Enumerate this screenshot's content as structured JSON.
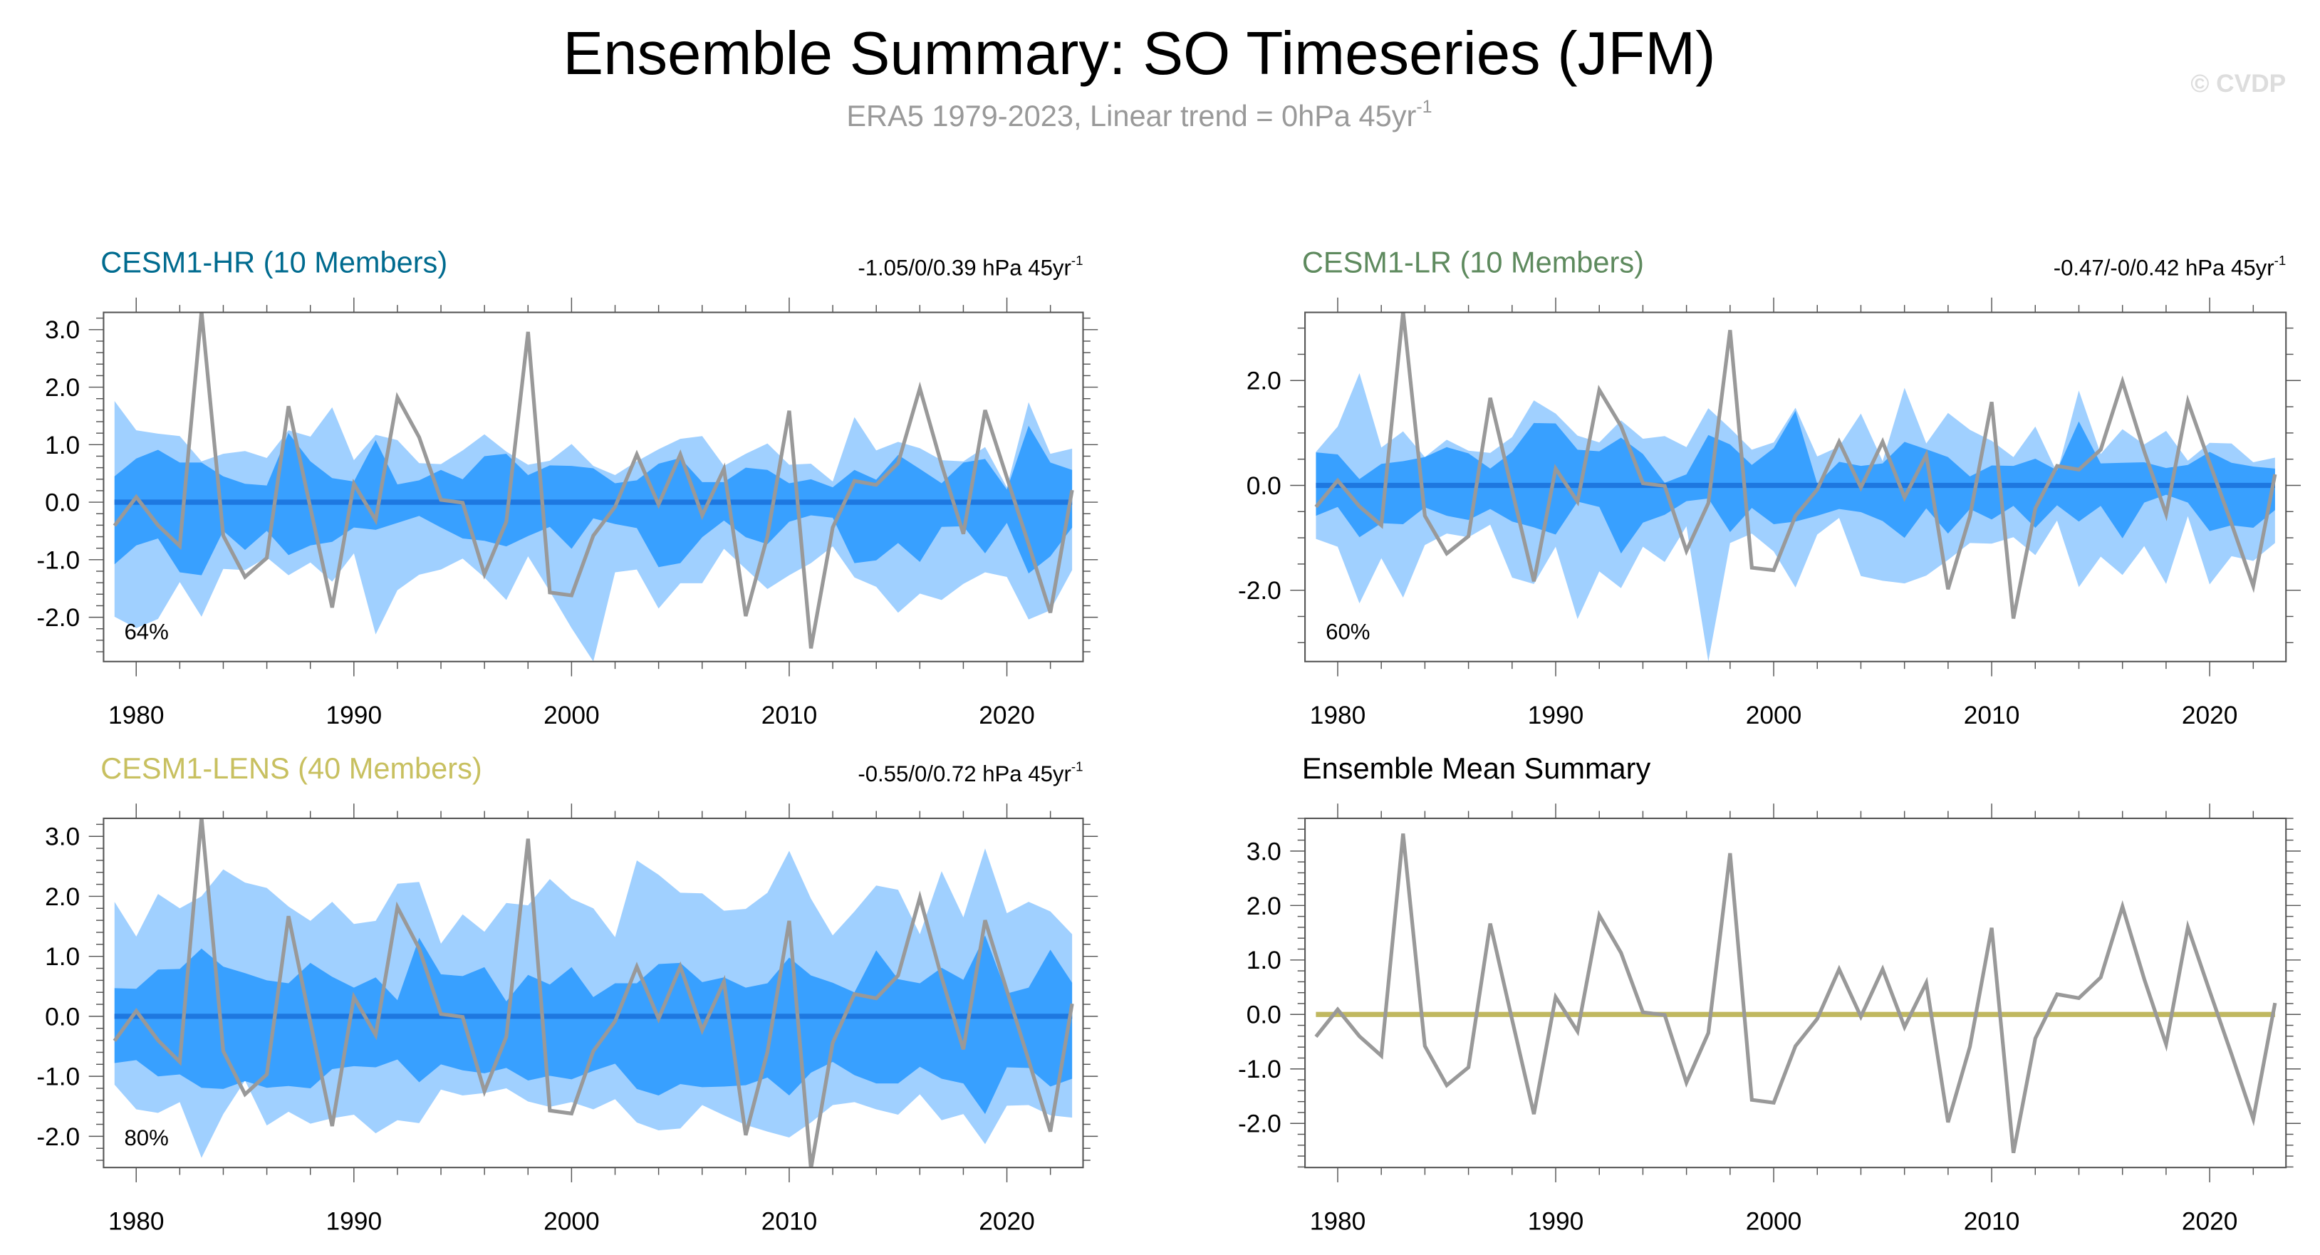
{
  "header": {
    "title": "Ensemble Summary: SO Timeseries (JFM)",
    "subtitle": "ERA5 1979-2023, Linear trend = 0hPa 45yr",
    "subtitle_sup": "-1",
    "watermark": "© CVDP"
  },
  "colors": {
    "band_outer": "#a0d0ff",
    "band_inner": "#38a0ff",
    "ensemble_mean_line": "#1e78e0",
    "observations": "#999999",
    "summary_mean_line": "#c0b860",
    "title_hr": "#006b8f",
    "title_lr": "#5e8a5e",
    "title_lens": "#c8c060",
    "title_summary": "#000000"
  },
  "chart_data": [
    {
      "type": "area",
      "title": "CESM1-HR (10 Members)",
      "title_color_key": "title_hr",
      "trend_label": "-1.05/0/0.39 hPa 45yr",
      "trend_sup": "-1",
      "percent_label": "64%",
      "x": [
        1979,
        1980,
        1981,
        1982,
        1983,
        1984,
        1985,
        1986,
        1987,
        1988,
        1989,
        1990,
        1991,
        1992,
        1993,
        1994,
        1995,
        1996,
        1997,
        1998,
        1999,
        2000,
        2001,
        2002,
        2003,
        2004,
        2005,
        2006,
        2007,
        2008,
        2009,
        2010,
        2011,
        2012,
        2013,
        2014,
        2015,
        2016,
        2017,
        2018,
        2019,
        2020,
        2021,
        2022,
        2023
      ],
      "xlim": [
        1978.5,
        2023.5
      ],
      "xticks": [
        1980,
        1990,
        2000,
        2010,
        2020
      ],
      "xtick_labels": [
        "1980",
        "1990",
        "2000",
        "2010",
        "2020"
      ],
      "ylim": [
        -2.77,
        3.3
      ],
      "yticks": [
        -2,
        -1,
        0,
        1,
        2,
        3
      ],
      "ytick_labels": [
        "-2.0",
        "-1.0",
        "0.0",
        "1.0",
        "2.0",
        "3.0"
      ],
      "yminor": 0.2,
      "outer_upper": [
        1.76,
        1.25,
        1.19,
        1.15,
        0.71,
        0.84,
        0.89,
        0.77,
        1.25,
        1.14,
        1.65,
        0.73,
        1.17,
        1.08,
        0.68,
        0.66,
        0.9,
        1.18,
        0.88,
        0.65,
        0.72,
        1.01,
        0.63,
        0.47,
        0.71,
        0.92,
        1.1,
        1.15,
        0.63,
        0.84,
        1.02,
        0.65,
        0.67,
        0.36,
        1.48,
        0.9,
        1.05,
        0.94,
        0.73,
        0.71,
        0.96,
        0.26,
        1.74,
        0.84,
        0.93
      ],
      "inner_upper": [
        0.45,
        0.76,
        0.91,
        0.69,
        0.69,
        0.45,
        0.32,
        0.29,
        1.2,
        0.71,
        0.42,
        0.36,
        1.08,
        0.31,
        0.38,
        0.56,
        0.4,
        0.8,
        0.84,
        0.47,
        0.64,
        0.63,
        0.59,
        0.33,
        0.38,
        0.67,
        0.77,
        0.35,
        0.35,
        0.6,
        0.56,
        0.33,
        0.4,
        0.26,
        0.56,
        0.39,
        0.82,
        0.58,
        0.33,
        0.69,
        0.75,
        0.22,
        1.33,
        0.69,
        0.56
      ],
      "inner_lower": [
        -1.08,
        -0.75,
        -0.63,
        -1.22,
        -1.27,
        -0.5,
        -0.83,
        -0.5,
        -0.92,
        -0.75,
        -0.69,
        -0.44,
        -0.48,
        -0.36,
        -0.24,
        -0.44,
        -0.63,
        -0.67,
        -0.77,
        -0.59,
        -0.43,
        -0.81,
        -0.28,
        -0.38,
        -0.45,
        -1.13,
        -1.06,
        -0.61,
        -0.32,
        -0.61,
        -0.73,
        -0.34,
        -0.23,
        -0.27,
        -1.06,
        -1.01,
        -0.71,
        -1.04,
        -0.43,
        -0.42,
        -0.89,
        -0.36,
        -1.24,
        -0.94,
        -0.44
      ],
      "outer_lower": [
        -1.99,
        -2.19,
        -2.03,
        -1.39,
        -1.99,
        -1.16,
        -1.18,
        -0.96,
        -1.27,
        -1.05,
        -1.38,
        -0.89,
        -2.3,
        -1.53,
        -1.26,
        -1.17,
        -0.98,
        -1.31,
        -1.7,
        -0.94,
        -1.55,
        -2.19,
        -2.77,
        -1.22,
        -1.17,
        -1.85,
        -1.41,
        -1.41,
        -0.81,
        -1.16,
        -1.51,
        -1.27,
        -1.06,
        -0.77,
        -1.31,
        -1.47,
        -1.92,
        -1.59,
        -1.7,
        -1.42,
        -1.22,
        -1.3,
        -2.04,
        -1.88,
        -1.18
      ],
      "ensemble_mean": 0,
      "observations": [
        -0.41,
        0.09,
        -0.4,
        -0.76,
        3.32,
        -0.58,
        -1.3,
        -0.97,
        1.67,
        -0.1,
        -1.83,
        0.32,
        -0.31,
        1.82,
        1.13,
        0.04,
        -0.01,
        -1.25,
        -0.34,
        2.96,
        -1.57,
        -1.62,
        -0.58,
        -0.08,
        0.83,
        -0.04,
        0.83,
        -0.23,
        0.58,
        -1.98,
        -0.59,
        1.59,
        -2.54,
        -0.44,
        0.37,
        0.3,
        0.68,
        1.98,
        0.65,
        -0.55,
        1.6,
        0.43,
        -0.73,
        -1.92,
        0.21
      ]
    },
    {
      "type": "area",
      "title": "CESM1-LR (10 Members)",
      "title_color_key": "title_lr",
      "trend_label": "-0.47/-0/0.42 hPa 45yr",
      "trend_sup": "-1",
      "percent_label": "60%",
      "x": [
        1979,
        1980,
        1981,
        1982,
        1983,
        1984,
        1985,
        1986,
        1987,
        1988,
        1989,
        1990,
        1991,
        1992,
        1993,
        1994,
        1995,
        1996,
        1997,
        1998,
        1999,
        2000,
        2001,
        2002,
        2003,
        2004,
        2005,
        2006,
        2007,
        2008,
        2009,
        2010,
        2011,
        2012,
        2013,
        2014,
        2015,
        2016,
        2017,
        2018,
        2019,
        2020,
        2021,
        2022,
        2023
      ],
      "xlim": [
        1978.5,
        2023.5
      ],
      "xticks": [
        1980,
        1990,
        2000,
        2010,
        2020
      ],
      "xtick_labels": [
        "1980",
        "1990",
        "2000",
        "2010",
        "2020"
      ],
      "ylim": [
        -3.36,
        3.3
      ],
      "yticks": [
        -2,
        0,
        2
      ],
      "ytick_labels": [
        "-2.0",
        "0.0",
        "2.0"
      ],
      "yminor": 0.5,
      "outer_upper": [
        0.64,
        1.12,
        2.14,
        0.72,
        1.03,
        0.54,
        0.87,
        0.66,
        0.62,
        0.92,
        1.62,
        1.37,
        0.95,
        0.82,
        1.24,
        0.89,
        0.94,
        0.73,
        1.47,
        1.09,
        0.68,
        0.82,
        1.48,
        0.55,
        0.74,
        1.37,
        0.46,
        1.86,
        0.8,
        1.38,
        1.06,
        0.85,
        0.54,
        1.12,
        0.24,
        1.81,
        0.6,
        1.07,
        0.78,
        1.04,
        0.47,
        0.81,
        0.8,
        0.44,
        0.53
      ],
      "inner_upper": [
        0.63,
        0.59,
        0.12,
        0.41,
        0.46,
        0.54,
        0.73,
        0.61,
        0.32,
        0.64,
        1.19,
        1.18,
        0.68,
        0.65,
        0.91,
        0.6,
        0.05,
        0.21,
        0.96,
        0.78,
        0.39,
        0.71,
        1.42,
        0.03,
        0.45,
        0.37,
        0.42,
        0.83,
        0.69,
        0.54,
        0.17,
        0.38,
        0.37,
        0.51,
        0.29,
        1.22,
        0.42,
        0.43,
        0.44,
        0.33,
        0.39,
        0.64,
        0.43,
        0.36,
        0.32
      ],
      "inner_lower": [
        -0.58,
        -0.41,
        -0.99,
        -0.72,
        -0.74,
        -0.42,
        -0.58,
        -0.66,
        -0.45,
        -0.69,
        -0.8,
        -0.94,
        -0.31,
        -0.41,
        -1.3,
        -0.71,
        -0.56,
        -0.3,
        -0.25,
        -0.89,
        -0.43,
        -0.74,
        -0.69,
        -0.58,
        -0.45,
        -0.51,
        -0.68,
        -1.0,
        -0.44,
        -0.92,
        -0.45,
        -0.65,
        -0.39,
        -0.81,
        -0.38,
        -0.69,
        -0.39,
        -1.01,
        -0.33,
        -0.18,
        -0.33,
        -0.87,
        -0.76,
        -0.81,
        -0.47
      ],
      "outer_lower": [
        -1.02,
        -1.17,
        -2.25,
        -1.39,
        -2.14,
        -1.14,
        -0.92,
        -0.99,
        -0.75,
        -1.76,
        -1.88,
        -1.17,
        -2.55,
        -1.64,
        -1.96,
        -1.17,
        -1.46,
        -0.78,
        -3.36,
        -1.1,
        -0.92,
        -1.26,
        -1.95,
        -0.94,
        -0.62,
        -1.73,
        -1.82,
        -1.87,
        -1.72,
        -1.42,
        -1.1,
        -1.11,
        -0.99,
        -1.33,
        -0.67,
        -1.94,
        -1.36,
        -1.71,
        -1.16,
        -1.88,
        -0.59,
        -1.89,
        -1.35,
        -1.44,
        -1.1
      ],
      "ensemble_mean": 0,
      "observations": [
        -0.41,
        0.09,
        -0.4,
        -0.76,
        3.32,
        -0.58,
        -1.3,
        -0.97,
        1.67,
        -0.1,
        -1.83,
        0.32,
        -0.31,
        1.82,
        1.13,
        0.04,
        -0.01,
        -1.25,
        -0.34,
        2.96,
        -1.57,
        -1.62,
        -0.58,
        -0.08,
        0.83,
        -0.04,
        0.83,
        -0.23,
        0.58,
        -1.98,
        -0.59,
        1.59,
        -2.54,
        -0.44,
        0.37,
        0.3,
        0.68,
        1.98,
        0.65,
        -0.55,
        1.6,
        0.43,
        -0.73,
        -1.92,
        0.21
      ]
    },
    {
      "type": "area",
      "title": "CESM1-LENS (40 Members)",
      "title_color_key": "title_lens",
      "trend_label": "-0.55/0/0.72 hPa 45yr",
      "trend_sup": "-1",
      "percent_label": "80%",
      "x": [
        1979,
        1980,
        1981,
        1982,
        1983,
        1984,
        1985,
        1986,
        1987,
        1988,
        1989,
        1990,
        1991,
        1992,
        1993,
        1994,
        1995,
        1996,
        1997,
        1998,
        1999,
        2000,
        2001,
        2002,
        2003,
        2004,
        2005,
        2006,
        2007,
        2008,
        2009,
        2010,
        2011,
        2012,
        2013,
        2014,
        2015,
        2016,
        2017,
        2018,
        2019,
        2020,
        2021,
        2022,
        2023
      ],
      "xlim": [
        1978.5,
        2023.5
      ],
      "xticks": [
        1980,
        1990,
        2000,
        2010,
        2020
      ],
      "xtick_labels": [
        "1980",
        "1990",
        "2000",
        "2010",
        "2020"
      ],
      "ylim": [
        -2.52,
        3.3
      ],
      "yticks": [
        -2,
        -1,
        0,
        1,
        2,
        3
      ],
      "ytick_labels": [
        "-2.0",
        "-1.0",
        "0.0",
        "1.0",
        "2.0",
        "3.0"
      ],
      "yminor": 0.2,
      "outer_upper": [
        1.91,
        1.33,
        2.04,
        1.8,
        2.0,
        2.45,
        2.23,
        2.14,
        1.83,
        1.59,
        1.91,
        1.54,
        1.59,
        2.21,
        2.24,
        1.21,
        1.7,
        1.41,
        1.89,
        1.85,
        2.29,
        1.96,
        1.8,
        1.32,
        2.6,
        2.36,
        2.06,
        2.05,
        1.76,
        1.79,
        2.06,
        2.76,
        1.96,
        1.35,
        1.75,
        2.18,
        2.11,
        1.37,
        2.42,
        1.65,
        2.8,
        1.72,
        1.91,
        1.75,
        1.37
      ],
      "inner_upper": [
        0.47,
        0.46,
        0.78,
        0.79,
        1.13,
        0.83,
        0.72,
        0.6,
        0.55,
        0.89,
        0.66,
        0.48,
        0.65,
        0.27,
        1.31,
        0.7,
        0.67,
        0.82,
        0.25,
        0.69,
        0.53,
        0.82,
        0.32,
        0.55,
        0.55,
        0.87,
        0.89,
        0.57,
        0.65,
        0.48,
        0.55,
        0.98,
        0.68,
        0.56,
        0.4,
        1.1,
        0.62,
        0.55,
        0.81,
        0.61,
        1.35,
        0.38,
        0.48,
        1.11,
        0.56
      ],
      "inner_lower": [
        -0.78,
        -0.73,
        -1.0,
        -0.97,
        -1.19,
        -1.21,
        -1.08,
        -1.19,
        -1.16,
        -1.2,
        -0.88,
        -0.83,
        -0.85,
        -0.72,
        -1.1,
        -0.8,
        -0.9,
        -0.95,
        -0.86,
        -1.07,
        -0.99,
        -1.05,
        -0.91,
        -0.79,
        -1.21,
        -1.32,
        -1.13,
        -1.18,
        -1.17,
        -1.15,
        -1.02,
        -1.32,
        -0.94,
        -0.76,
        -0.98,
        -1.12,
        -1.12,
        -0.84,
        -1.04,
        -1.12,
        -1.63,
        -0.85,
        -0.86,
        -1.17,
        -1.04
      ],
      "outer_lower": [
        -1.14,
        -1.55,
        -1.61,
        -1.43,
        -2.36,
        -1.63,
        -1.07,
        -1.82,
        -1.59,
        -1.79,
        -1.7,
        -1.64,
        -1.95,
        -1.73,
        -1.78,
        -1.22,
        -1.32,
        -1.28,
        -1.2,
        -1.42,
        -1.51,
        -1.43,
        -1.55,
        -1.38,
        -1.77,
        -1.9,
        -1.87,
        -1.48,
        -1.65,
        -1.81,
        -1.92,
        -2.02,
        -1.77,
        -1.48,
        -1.43,
        -1.55,
        -1.64,
        -1.3,
        -1.73,
        -1.63,
        -2.13,
        -1.49,
        -1.48,
        -1.65,
        -1.69
      ],
      "ensemble_mean": 0,
      "observations": [
        -0.41,
        0.09,
        -0.4,
        -0.76,
        3.32,
        -0.58,
        -1.3,
        -0.97,
        1.67,
        -0.1,
        -1.83,
        0.32,
        -0.31,
        1.82,
        1.13,
        0.04,
        -0.01,
        -1.25,
        -0.34,
        2.96,
        -1.57,
        -1.62,
        -0.58,
        -0.08,
        0.83,
        -0.04,
        0.83,
        -0.23,
        0.58,
        -1.98,
        -0.59,
        1.59,
        -2.54,
        -0.44,
        0.37,
        0.3,
        0.68,
        1.98,
        0.65,
        -0.55,
        1.6,
        0.43,
        -0.73,
        -1.92,
        0.21
      ]
    },
    {
      "type": "line",
      "title": "Ensemble Mean Summary",
      "title_color_key": "title_summary",
      "x": [
        1979,
        1980,
        1981,
        1982,
        1983,
        1984,
        1985,
        1986,
        1987,
        1988,
        1989,
        1990,
        1991,
        1992,
        1993,
        1994,
        1995,
        1996,
        1997,
        1998,
        1999,
        2000,
        2001,
        2002,
        2003,
        2004,
        2005,
        2006,
        2007,
        2008,
        2009,
        2010,
        2011,
        2012,
        2013,
        2014,
        2015,
        2016,
        2017,
        2018,
        2019,
        2020,
        2021,
        2022,
        2023
      ],
      "xlim": [
        1978.5,
        2023.5
      ],
      "xticks": [
        1980,
        1990,
        2000,
        2010,
        2020
      ],
      "xtick_labels": [
        "1980",
        "1990",
        "2000",
        "2010",
        "2020"
      ],
      "ylim": [
        -2.81,
        3.6
      ],
      "yticks": [
        -2,
        -1,
        0,
        1,
        2,
        3
      ],
      "ytick_labels": [
        "-2.0",
        "-1.0",
        "0.0",
        "1.0",
        "2.0",
        "3.0"
      ],
      "yminor": 0.2,
      "ensemble_mean": 0,
      "observations": [
        -0.41,
        0.09,
        -0.4,
        -0.76,
        3.32,
        -0.58,
        -1.3,
        -0.97,
        1.67,
        -0.1,
        -1.83,
        0.32,
        -0.31,
        1.82,
        1.13,
        0.04,
        -0.01,
        -1.25,
        -0.34,
        2.96,
        -1.57,
        -1.62,
        -0.58,
        -0.08,
        0.83,
        -0.04,
        0.83,
        -0.23,
        0.58,
        -1.98,
        -0.59,
        1.59,
        -2.54,
        -0.44,
        0.37,
        0.3,
        0.68,
        1.98,
        0.65,
        -0.55,
        1.6,
        0.43,
        -0.73,
        -1.92,
        0.21
      ]
    }
  ]
}
